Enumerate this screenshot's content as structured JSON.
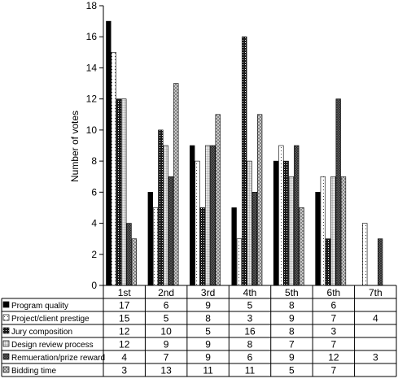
{
  "chart_data": {
    "type": "bar",
    "ylabel": "Number of votes",
    "xlabel": "",
    "ylim": [
      0,
      18
    ],
    "yticks": [
      0,
      2,
      4,
      6,
      8,
      10,
      12,
      14,
      16,
      18
    ],
    "grid": false,
    "legend_placement": "data-table-below",
    "categories": [
      "1st",
      "2nd",
      "3rd",
      "4th",
      "5th",
      "6th",
      "7th"
    ],
    "series": [
      {
        "name": "Program quality",
        "pattern": "solid-black",
        "values": [
          17,
          6,
          9,
          5,
          8,
          6,
          null
        ],
        "cells": [
          "17",
          "6",
          "9",
          "5",
          "8",
          "6",
          ""
        ]
      },
      {
        "name": "Project/client prestige",
        "pattern": "dotted-white",
        "values": [
          15,
          5,
          8,
          3,
          9,
          7,
          4
        ],
        "cells": [
          "15",
          "5",
          "8",
          "3",
          "9",
          "7",
          "4"
        ]
      },
      {
        "name": "Jury composition",
        "pattern": "dark-dots",
        "values": [
          12,
          10,
          5,
          16,
          8,
          3,
          null
        ],
        "cells": [
          "12",
          "10",
          "5",
          "16",
          "8",
          "3",
          ""
        ]
      },
      {
        "name": "Design review process",
        "pattern": "light-grid",
        "values": [
          12,
          9,
          9,
          8,
          7,
          7,
          null
        ],
        "cells": [
          "12",
          "9",
          "9",
          "8",
          "7",
          "7",
          ""
        ]
      },
      {
        "name": "Remueration/prize reward",
        "pattern": "dense-cross",
        "values": [
          4,
          7,
          9,
          6,
          9,
          12,
          3
        ],
        "cells": [
          "4",
          "7",
          "9",
          "6",
          "9",
          "12",
          "3"
        ]
      },
      {
        "name": "Bidding time",
        "pattern": "diagonal-cross",
        "values": [
          3,
          13,
          11,
          11,
          5,
          7,
          null
        ],
        "cells": [
          "3",
          "13",
          "11",
          "11",
          "5",
          "7",
          ""
        ]
      }
    ]
  }
}
